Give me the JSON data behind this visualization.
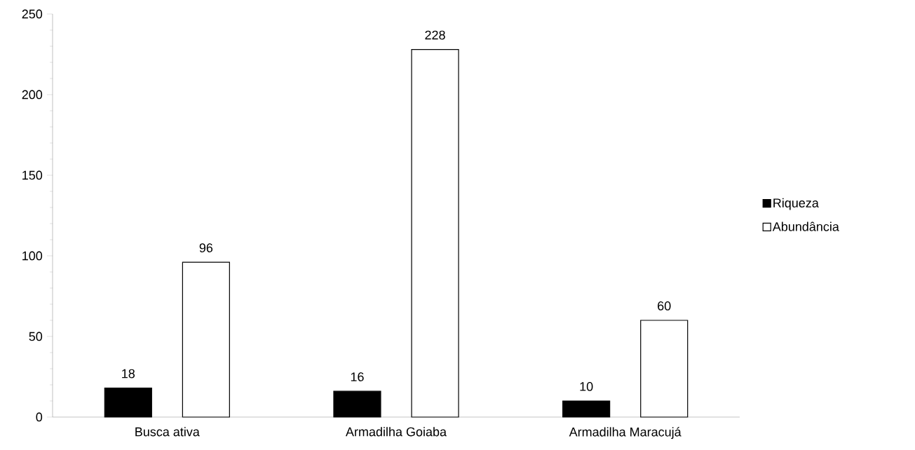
{
  "chart_data": {
    "type": "bar",
    "categories": [
      "Busca ativa",
      "Armadilha Goiaba",
      "Armadilha Maracujá"
    ],
    "series": [
      {
        "name": "Riqueza",
        "color": "#000000",
        "values": [
          18,
          16,
          10
        ]
      },
      {
        "name": "Abundância",
        "color": "#ffffff",
        "values": [
          96,
          228,
          60
        ]
      }
    ],
    "ylim": [
      0,
      250
    ],
    "yticks": [
      0,
      50,
      100,
      150,
      200,
      250
    ],
    "data_labels": true,
    "grid": false,
    "legend": "right"
  }
}
